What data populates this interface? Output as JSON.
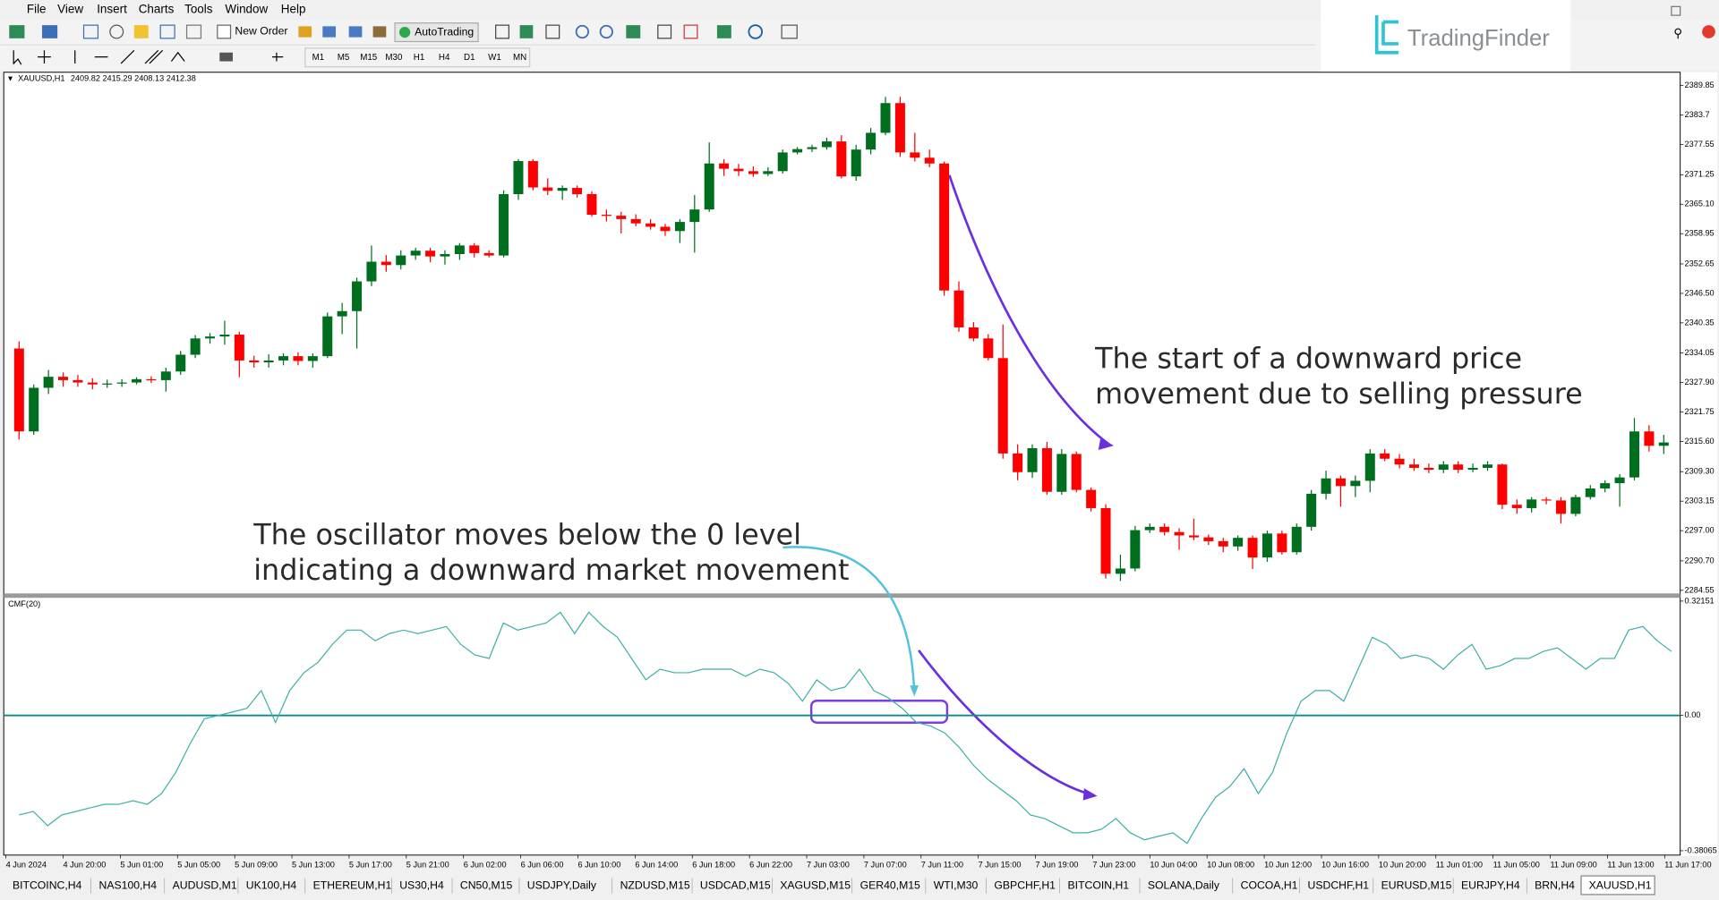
{
  "menu": [
    "File",
    "View",
    "Insert",
    "Charts",
    "Tools",
    "Window",
    "Help"
  ],
  "toolbar": {
    "new_order": "New Order",
    "auto_trading": "AutoTrading",
    "timeframes": [
      "M1",
      "M5",
      "M15",
      "M30",
      "H1",
      "H4",
      "D1",
      "W1",
      "MN"
    ]
  },
  "brand": "TradingFinder",
  "chart_data": [
    {
      "type": "candlestick",
      "title": "XAUUSD,H1",
      "subtitle": "2409.82 2415.29 2408.13 2412.38",
      "up_color": "#006e1f",
      "down_color": "#ff0000",
      "ylim": [
        2283.9,
        2392.4
      ],
      "yticks": [
        2389.85,
        2383.7,
        2377.55,
        2371.25,
        {
          "value": 2365.1,
          "label": "2365.10"
        },
        2358.95,
        2352.65,
        {
          "value": 2346.5,
          "label": "2346.50"
        },
        2340.35,
        2334.05,
        {
          "value": 2327.9,
          "label": "2327.90"
        },
        2321.75,
        {
          "value": 2315.6,
          "label": "2315.60"
        },
        {
          "value": 2309.3,
          "label": "2309.30"
        },
        2303.15,
        {
          "value": 2297,
          "label": "2297.00"
        },
        {
          "value": 2290.7,
          "label": "2290.70"
        },
        2284.55
      ],
      "x_labels": [
        "4 Jun 2024",
        "4 Jun 20:00",
        "5 Jun 01:00",
        "5 Jun 05:00",
        "5 Jun 09:00",
        "5 Jun 13:00",
        "5 Jun 17:00",
        "5 Jun 21:00",
        "6 Jun 02:00",
        "6 Jun 06:00",
        "6 Jun 10:00",
        "6 Jun 14:00",
        "6 Jun 18:00",
        "6 Jun 22:00",
        "7 Jun 03:00",
        "7 Jun 07:00",
        "7 Jun 11:00",
        "7 Jun 15:00",
        "7 Jun 19:00",
        "7 Jun 23:00",
        "10 Jun 04:00",
        "10 Jun 08:00",
        "10 Jun 12:00",
        "10 Jun 16:00",
        "10 Jun 20:00",
        "11 Jun 01:00",
        "11 Jun 05:00",
        "11 Jun 09:00",
        "11 Jun 13:00",
        "11 Jun 17:00"
      ],
      "ohlc": [
        [
          2335.0,
          2336.5,
          2316.0,
          2317.7
        ],
        [
          2317.7,
          2327.5,
          2317.0,
          2326.8
        ],
        [
          2326.8,
          2330.5,
          2325.5,
          2329.1
        ],
        [
          2329.1,
          2330.0,
          2327.0,
          2328.4
        ],
        [
          2328.4,
          2329.5,
          2327.0,
          2327.9
        ],
        [
          2327.9,
          2328.8,
          2326.5,
          2327.5
        ],
        [
          2327.5,
          2328.5,
          2326.8,
          2327.7
        ],
        [
          2327.7,
          2328.6,
          2327.0,
          2327.9
        ],
        [
          2327.9,
          2329.0,
          2327.5,
          2328.6
        ],
        [
          2328.6,
          2329.2,
          2327.8,
          2328.4
        ],
        [
          2328.4,
          2331.0,
          2326.0,
          2330.2
        ],
        [
          2330.2,
          2334.5,
          2329.5,
          2333.7
        ],
        [
          2333.7,
          2337.8,
          2333.0,
          2337.1
        ],
        [
          2337.1,
          2338.2,
          2336.0,
          2337.5
        ],
        [
          2337.5,
          2340.8,
          2335.8,
          2337.9
        ],
        [
          2337.9,
          2338.5,
          2329.0,
          2332.5
        ],
        [
          2332.5,
          2333.5,
          2331.0,
          2332.1
        ],
        [
          2332.1,
          2333.8,
          2331.0,
          2332.5
        ],
        [
          2332.5,
          2334.0,
          2331.5,
          2333.4
        ],
        [
          2333.4,
          2334.2,
          2331.5,
          2332.4
        ],
        [
          2332.4,
          2334.0,
          2331.0,
          2333.4
        ],
        [
          2333.4,
          2342.5,
          2333.0,
          2341.7
        ],
        [
          2341.7,
          2344.5,
          2338.0,
          2342.8
        ],
        [
          2342.8,
          2349.8,
          2335.0,
          2349.0
        ],
        [
          2349.0,
          2356.5,
          2348.0,
          2353.1
        ],
        [
          2353.1,
          2354.5,
          2351.0,
          2352.4
        ],
        [
          2352.4,
          2355.5,
          2351.5,
          2354.4
        ],
        [
          2354.4,
          2356.0,
          2353.5,
          2355.4
        ],
        [
          2355.4,
          2356.0,
          2353.0,
          2354.2
        ],
        [
          2354.2,
          2355.5,
          2352.5,
          2354.7
        ],
        [
          2354.7,
          2357.0,
          2353.5,
          2356.5
        ],
        [
          2356.5,
          2357.0,
          2354.0,
          2354.9
        ],
        [
          2354.9,
          2355.5,
          2354.0,
          2354.4
        ],
        [
          2354.4,
          2368.0,
          2354.0,
          2367.2
        ],
        [
          2367.2,
          2374.5,
          2366.0,
          2374.1
        ],
        [
          2374.1,
          2374.5,
          2368.0,
          2368.6
        ],
        [
          2368.6,
          2370.5,
          2367.0,
          2367.9
        ],
        [
          2367.9,
          2369.0,
          2366.0,
          2368.5
        ],
        [
          2368.5,
          2369.0,
          2366.5,
          2367.2
        ],
        [
          2367.2,
          2367.8,
          2362.5,
          2362.9
        ],
        [
          2362.9,
          2364.0,
          2361.5,
          2362.7
        ],
        [
          2362.7,
          2363.5,
          2359.0,
          2362.0
        ],
        [
          2362.0,
          2363.0,
          2360.5,
          2361.1
        ],
        [
          2361.1,
          2362.0,
          2359.8,
          2360.4
        ],
        [
          2360.4,
          2361.0,
          2358.5,
          2359.5
        ],
        [
          2359.5,
          2362.0,
          2357.0,
          2361.4
        ],
        [
          2361.4,
          2367.0,
          2355.0,
          2364.0
        ],
        [
          2364.0,
          2378.0,
          2363.5,
          2373.6
        ],
        [
          2373.6,
          2374.5,
          2371.0,
          2372.5
        ],
        [
          2372.5,
          2373.5,
          2371.0,
          2372.0
        ],
        [
          2372.0,
          2373.0,
          2370.8,
          2371.4
        ],
        [
          2371.4,
          2372.8,
          2371.0,
          2372.0
        ],
        [
          2372.0,
          2376.5,
          2371.5,
          2375.9
        ],
        [
          2375.9,
          2377.0,
          2375.5,
          2376.6
        ],
        [
          2376.6,
          2377.5,
          2376.0,
          2377.0
        ],
        [
          2377.0,
          2379.0,
          2376.5,
          2378.2
        ],
        [
          2378.2,
          2379.5,
          2370.5,
          2370.9
        ],
        [
          2370.9,
          2377.5,
          2370.0,
          2376.5
        ],
        [
          2376.5,
          2381.0,
          2375.5,
          2380.0
        ],
        [
          2380.0,
          2387.5,
          2379.5,
          2386.2
        ],
        [
          2386.2,
          2387.5,
          2375.0,
          2375.9
        ],
        [
          2375.9,
          2380.0,
          2374.0,
          2374.8
        ],
        [
          2374.8,
          2376.5,
          2372.8,
          2373.6
        ],
        [
          2373.6,
          2374.0,
          2346.0,
          2347.1
        ],
        [
          2347.1,
          2349.0,
          2338.5,
          2339.4
        ],
        [
          2339.4,
          2340.5,
          2336.5,
          2337.1
        ],
        [
          2337.1,
          2338.0,
          2332.5,
          2333.0
        ],
        [
          2333.0,
          2340.0,
          2312.0,
          2313.1
        ],
        [
          2313.1,
          2315.0,
          2307.5,
          2309.2
        ],
        [
          2309.2,
          2315.0,
          2308.0,
          2314.2
        ],
        [
          2314.2,
          2315.5,
          2304.5,
          2305.1
        ],
        [
          2305.1,
          2314.0,
          2304.5,
          2313.0
        ],
        [
          2313.0,
          2313.5,
          2305.0,
          2305.5
        ],
        [
          2305.5,
          2306.0,
          2301.0,
          2301.7
        ],
        [
          2301.7,
          2302.5,
          2287.0,
          2288.0
        ],
        [
          2288.0,
          2292.0,
          2286.5,
          2289.1
        ],
        [
          2289.1,
          2298.0,
          2288.5,
          2297.1
        ],
        [
          2297.1,
          2298.5,
          2296.5,
          2297.8
        ],
        [
          2297.8,
          2298.5,
          2296.0,
          2296.7
        ],
        [
          2296.7,
          2297.5,
          2293.0,
          2296.0
        ],
        [
          2296.0,
          2299.5,
          2295.0,
          2295.6
        ],
        [
          2295.6,
          2296.2,
          2294.0,
          2294.8
        ],
        [
          2294.8,
          2295.5,
          2292.5,
          2293.7
        ],
        [
          2293.7,
          2296.0,
          2292.8,
          2295.5
        ],
        [
          2295.5,
          2296.0,
          2289.0,
          2291.4
        ],
        [
          2291.4,
          2297.0,
          2290.5,
          2296.4
        ],
        [
          2296.4,
          2297.0,
          2292.0,
          2292.5
        ],
        [
          2292.5,
          2298.5,
          2292.0,
          2297.8
        ],
        [
          2297.8,
          2305.5,
          2297.0,
          2304.7
        ],
        [
          2304.7,
          2309.5,
          2303.5,
          2307.9
        ],
        [
          2307.9,
          2308.5,
          2302.0,
          2306.3
        ],
        [
          2306.3,
          2308.5,
          2304.0,
          2307.4
        ],
        [
          2307.4,
          2314.0,
          2305.0,
          2313.1
        ],
        [
          2313.1,
          2314.0,
          2311.5,
          2312.0
        ],
        [
          2312.0,
          2313.0,
          2310.0,
          2310.8
        ],
        [
          2310.8,
          2312.0,
          2309.5,
          2310.1
        ],
        [
          2310.1,
          2311.0,
          2309.0,
          2309.7
        ],
        [
          2309.7,
          2311.5,
          2309.0,
          2310.8
        ],
        [
          2310.8,
          2311.5,
          2309.0,
          2309.7
        ],
        [
          2309.7,
          2311.0,
          2309.2,
          2310.1
        ],
        [
          2310.1,
          2311.5,
          2309.5,
          2310.8
        ],
        [
          2310.8,
          2311.0,
          2301.5,
          2302.4
        ],
        [
          2302.4,
          2303.5,
          2300.5,
          2301.7
        ],
        [
          2301.7,
          2304.0,
          2300.8,
          2303.5
        ],
        [
          2303.5,
          2304.0,
          2302.5,
          2303.3
        ],
        [
          2303.3,
          2304.0,
          2298.5,
          2300.5
        ],
        [
          2300.5,
          2304.5,
          2300.0,
          2304.0
        ],
        [
          2304.0,
          2306.5,
          2303.5,
          2305.8
        ],
        [
          2305.8,
          2307.5,
          2305.0,
          2306.9
        ],
        [
          2306.9,
          2308.8,
          2302.0,
          2308.1
        ],
        [
          2308.1,
          2320.5,
          2307.5,
          2317.7
        ],
        [
          2317.7,
          2319.0,
          2313.5,
          2314.7
        ],
        [
          2314.7,
          2317.0,
          2313.0,
          2315.4
        ]
      ],
      "annotations": [
        {
          "lines": [
            "The start of a downward price",
            "movement due to selling pressure"
          ]
        }
      ]
    },
    {
      "type": "line",
      "title": "CMF(20)",
      "color": "#3fb0a6",
      "level_color": "#0f8a8a",
      "ylim": [
        -0.38065,
        0.32151
      ],
      "yticks": [
        0.32151,
        {
          "value": 0,
          "label": "0.00"
        },
        -0.38065
      ],
      "values": [
        -0.28,
        -0.27,
        -0.31,
        -0.28,
        -0.27,
        -0.26,
        -0.25,
        -0.25,
        -0.24,
        -0.25,
        -0.22,
        -0.16,
        -0.08,
        -0.01,
        0.0,
        0.01,
        0.02,
        0.07,
        -0.02,
        0.07,
        0.12,
        0.15,
        0.2,
        0.24,
        0.24,
        0.21,
        0.23,
        0.24,
        0.23,
        0.24,
        0.25,
        0.2,
        0.17,
        0.16,
        0.26,
        0.24,
        0.25,
        0.26,
        0.29,
        0.23,
        0.29,
        0.25,
        0.22,
        0.16,
        0.1,
        0.13,
        0.12,
        0.12,
        0.13,
        0.13,
        0.13,
        0.11,
        0.13,
        0.12,
        0.09,
        0.04,
        0.1,
        0.07,
        0.08,
        0.13,
        0.07,
        0.05,
        0.02,
        -0.02,
        -0.03,
        -0.05,
        -0.09,
        -0.14,
        -0.18,
        -0.21,
        -0.24,
        -0.28,
        -0.29,
        -0.31,
        -0.33,
        -0.33,
        -0.32,
        -0.29,
        -0.33,
        -0.35,
        -0.34,
        -0.33,
        -0.36,
        -0.29,
        -0.23,
        -0.2,
        -0.15,
        -0.22,
        -0.16,
        -0.05,
        0.04,
        0.07,
        0.07,
        0.04,
        0.13,
        0.22,
        0.2,
        0.16,
        0.17,
        0.16,
        0.13,
        0.17,
        0.2,
        0.13,
        0.14,
        0.16,
        0.16,
        0.18,
        0.19,
        0.16,
        0.13,
        0.16,
        0.16,
        0.24,
        0.25,
        0.21,
        0.18
      ],
      "annotations": [
        {
          "lines": [
            "The oscillator moves below the 0 level",
            "indicating a downward market movement"
          ]
        }
      ]
    }
  ],
  "tabs": [
    "BITCOINC,H4",
    "NAS100,H4",
    "AUDUSD,M1",
    "UK100,H4",
    "ETHEREUM,H1",
    "US30,H4",
    "CN50,M15",
    "USDJPY,Daily",
    "NZDUSD,M15",
    "USDCAD,M15",
    "XAGUSD,M15",
    "GER40,M15",
    "WTI,M30",
    "GBPCHF,H1",
    "BITCOIN,H1",
    "SOLANA,Daily",
    "COCOA,H1",
    "USDCHF,H1",
    "EURUSD,M15",
    "EURJPY,H4",
    "BRN,H4",
    "XAUUSD,H1"
  ]
}
